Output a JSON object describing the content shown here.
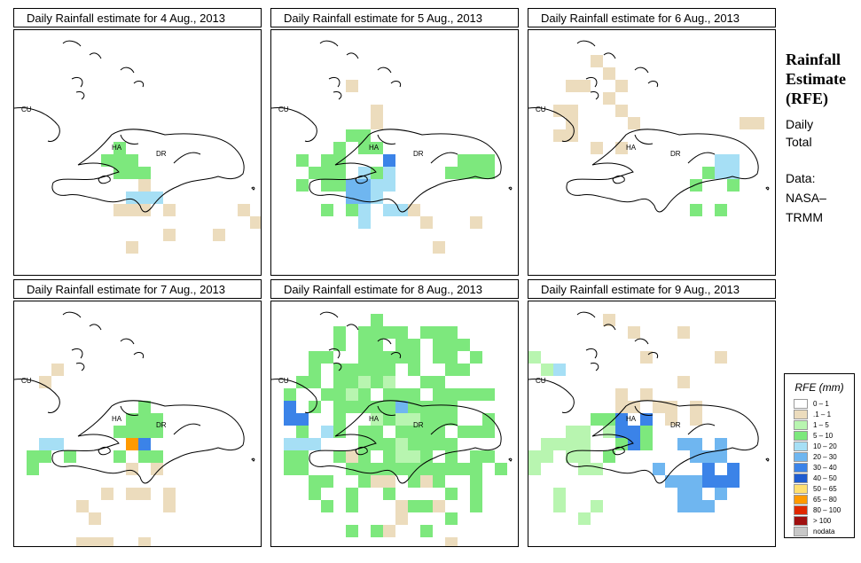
{
  "sidebar": {
    "title_lines": [
      "Rainfall",
      "Estimate",
      "(RFE)"
    ],
    "subtitle_lines": [
      "Daily",
      "Total"
    ],
    "source_lines": [
      "Data:",
      "NASA–",
      "TRMM"
    ]
  },
  "country_labels": [
    "CU",
    "HA",
    "DR"
  ],
  "panels": [
    {
      "title": "Daily Rainfall estimate for  4 Aug., 2013"
    },
    {
      "title": "Daily Rainfall estimate for  5 Aug., 2013"
    },
    {
      "title": "Daily Rainfall estimate for  6 Aug., 2013"
    },
    {
      "title": "Daily Rainfall estimate for  7 Aug., 2013"
    },
    {
      "title": "Daily Rainfall estimate for  8 Aug., 2013"
    },
    {
      "title": "Daily Rainfall estimate for  9 Aug., 2013"
    }
  ],
  "legend": {
    "title": "RFE (mm)",
    "items": [
      {
        "label": "0 – 1",
        "color": "#ffffff"
      },
      {
        "label": ".1 – 1",
        "color": "#ecdcbd"
      },
      {
        "label": "1 – 5",
        "color": "#b8f5b0"
      },
      {
        "label": "5 – 10",
        "color": "#7de87d"
      },
      {
        "label": "10 – 20",
        "color": "#a6dff5"
      },
      {
        "label": "20 – 30",
        "color": "#6fb6f0"
      },
      {
        "label": "30 – 40",
        "color": "#3b83e8"
      },
      {
        "label": "40 – 50",
        "color": "#1f5cd0"
      },
      {
        "label": "50 – 65",
        "color": "#ffe070"
      },
      {
        "label": "65 – 80",
        "color": "#ff9a00"
      },
      {
        "label": "80 – 100",
        "color": "#e02800"
      },
      {
        "label": "> 100",
        "color": "#a01010"
      },
      {
        "label": "nodata",
        "color": "#c8c8c8"
      }
    ]
  }
}
